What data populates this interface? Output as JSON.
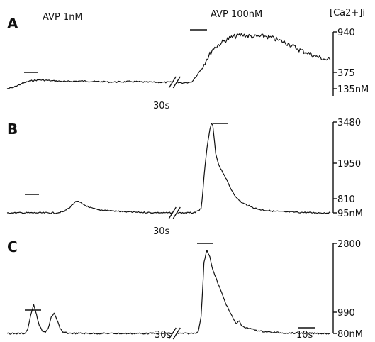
{
  "chart_data": {
    "type": "line",
    "title": "",
    "y_axis_title": "[Ca2+]i",
    "stimulus_labels": [
      "AVP 1nM",
      "AVP 100nM"
    ],
    "time_break_label": "30s",
    "scale_bar_label": "10s",
    "panels": [
      {
        "name": "A",
        "ticks": [
          {
            "value": 940,
            "label": "940"
          },
          {
            "value": 375,
            "label": "375"
          },
          {
            "value": 135,
            "label": "135nM"
          }
        ],
        "segments": [
          {
            "start": [
              0,
              135
            ],
            "points": [
              [
                2,
                150
              ],
              [
                5,
                210
              ],
              [
                8,
                250
              ],
              [
                11,
                265
              ],
              [
                15,
                252
              ],
              [
                20,
                240
              ],
              [
                25,
                248
              ],
              [
                30,
                240
              ],
              [
                36,
                232
              ],
              [
                42,
                240
              ],
              [
                47,
                232
              ],
              [
                52,
                228
              ],
              [
                56,
                230
              ]
            ]
          },
          {
            "start": [
              58,
              225
            ],
            "points": [
              [
                60,
                220
              ],
              [
                62,
                228
              ],
              [
                63,
                240
              ],
              [
                64,
                300
              ],
              [
                66,
                420
              ],
              [
                68,
                560
              ],
              [
                70,
                700
              ],
              [
                73,
                790
              ],
              [
                76,
                860
              ],
              [
                80,
                900
              ],
              [
                84,
                870
              ],
              [
                88,
                880
              ],
              [
                92,
                830
              ],
              [
                96,
                770
              ],
              [
                99,
                700
              ],
              [
                102,
                650
              ],
              [
                105,
                600
              ],
              [
                108,
                560
              ],
              [
                110,
                545
              ]
            ]
          }
        ]
      },
      {
        "name": "B",
        "ticks": [
          {
            "value": 3480,
            "label": "3480"
          },
          {
            "value": 1950,
            "label": "1950"
          },
          {
            "value": 810,
            "label": "810"
          },
          {
            "value": 95,
            "label": "95nM"
          }
        ],
        "segments": [
          {
            "start": [
              0,
              95
            ],
            "points": [
              [
                10,
                95
              ],
              [
                17,
                95
              ],
              [
                19,
                150
              ],
              [
                21,
                330
              ],
              [
                23,
                620
              ],
              [
                24,
                680
              ],
              [
                26,
                520
              ],
              [
                28,
                360
              ],
              [
                31,
                250
              ],
              [
                35,
                210
              ],
              [
                40,
                150
              ],
              [
                45,
                120
              ],
              [
                50,
                105
              ],
              [
                56,
                95
              ]
            ]
          },
          {
            "start": [
              58,
              95
            ],
            "points": [
              [
                62,
                95
              ],
              [
                64,
                105
              ],
              [
                66,
                300
              ],
              [
                67,
                1500
              ],
              [
                68,
                2500
              ],
              [
                69,
                3200
              ],
              [
                69.5,
                3420
              ],
              [
                70,
                3350
              ],
              [
                71,
                2300
              ],
              [
                72,
                1900
              ],
              [
                74,
                1550
              ],
              [
                76,
                1150
              ],
              [
                78,
                850
              ],
              [
                80,
                600
              ],
              [
                83,
                400
              ],
              [
                86,
                260
              ],
              [
                90,
                190
              ],
              [
                95,
                140
              ],
              [
                100,
                120
              ],
              [
                105,
                100
              ],
              [
                110,
                95
              ]
            ]
          }
        ]
      },
      {
        "name": "C",
        "ticks": [
          {
            "value": 2800,
            "label": "2800"
          },
          {
            "value": 990,
            "label": "990"
          },
          {
            "value": 80,
            "label": "80nM"
          }
        ],
        "segments": [
          {
            "start": [
              0,
              80
            ],
            "points": [
              [
                6,
                80
              ],
              [
                7,
                250
              ],
              [
                8,
                850
              ],
              [
                9,
                1200
              ],
              [
                10,
                900
              ],
              [
                11,
                400
              ],
              [
                12,
                180
              ],
              [
                13,
                120
              ],
              [
                14,
                300
              ],
              [
                15,
                780
              ],
              [
                16,
                950
              ],
              [
                17,
                650
              ],
              [
                18,
                300
              ],
              [
                19,
                130
              ],
              [
                21,
                90
              ],
              [
                30,
                80
              ],
              [
                40,
                80
              ],
              [
                50,
                80
              ],
              [
                56,
                80
              ]
            ]
          },
          {
            "start": [
              58,
              80
            ],
            "points": [
              [
                62,
                80
              ],
              [
                64,
                90
              ],
              [
                65,
                150
              ],
              [
                66,
                800
              ],
              [
                67,
                2300
              ],
              [
                68,
                2620
              ],
              [
                69,
                2450
              ],
              [
                70,
                2100
              ],
              [
                72,
                1700
              ],
              [
                74,
                1300
              ],
              [
                76,
                950
              ],
              [
                77,
                700
              ],
              [
                78,
                500
              ],
              [
                79,
                620
              ],
              [
                80,
                380
              ],
              [
                82,
                300
              ],
              [
                84,
                250
              ],
              [
                86,
                180
              ],
              [
                90,
                130
              ],
              [
                95,
                100
              ],
              [
                100,
                90
              ],
              [
                105,
                85
              ],
              [
                110,
                80
              ]
            ]
          }
        ]
      }
    ]
  }
}
